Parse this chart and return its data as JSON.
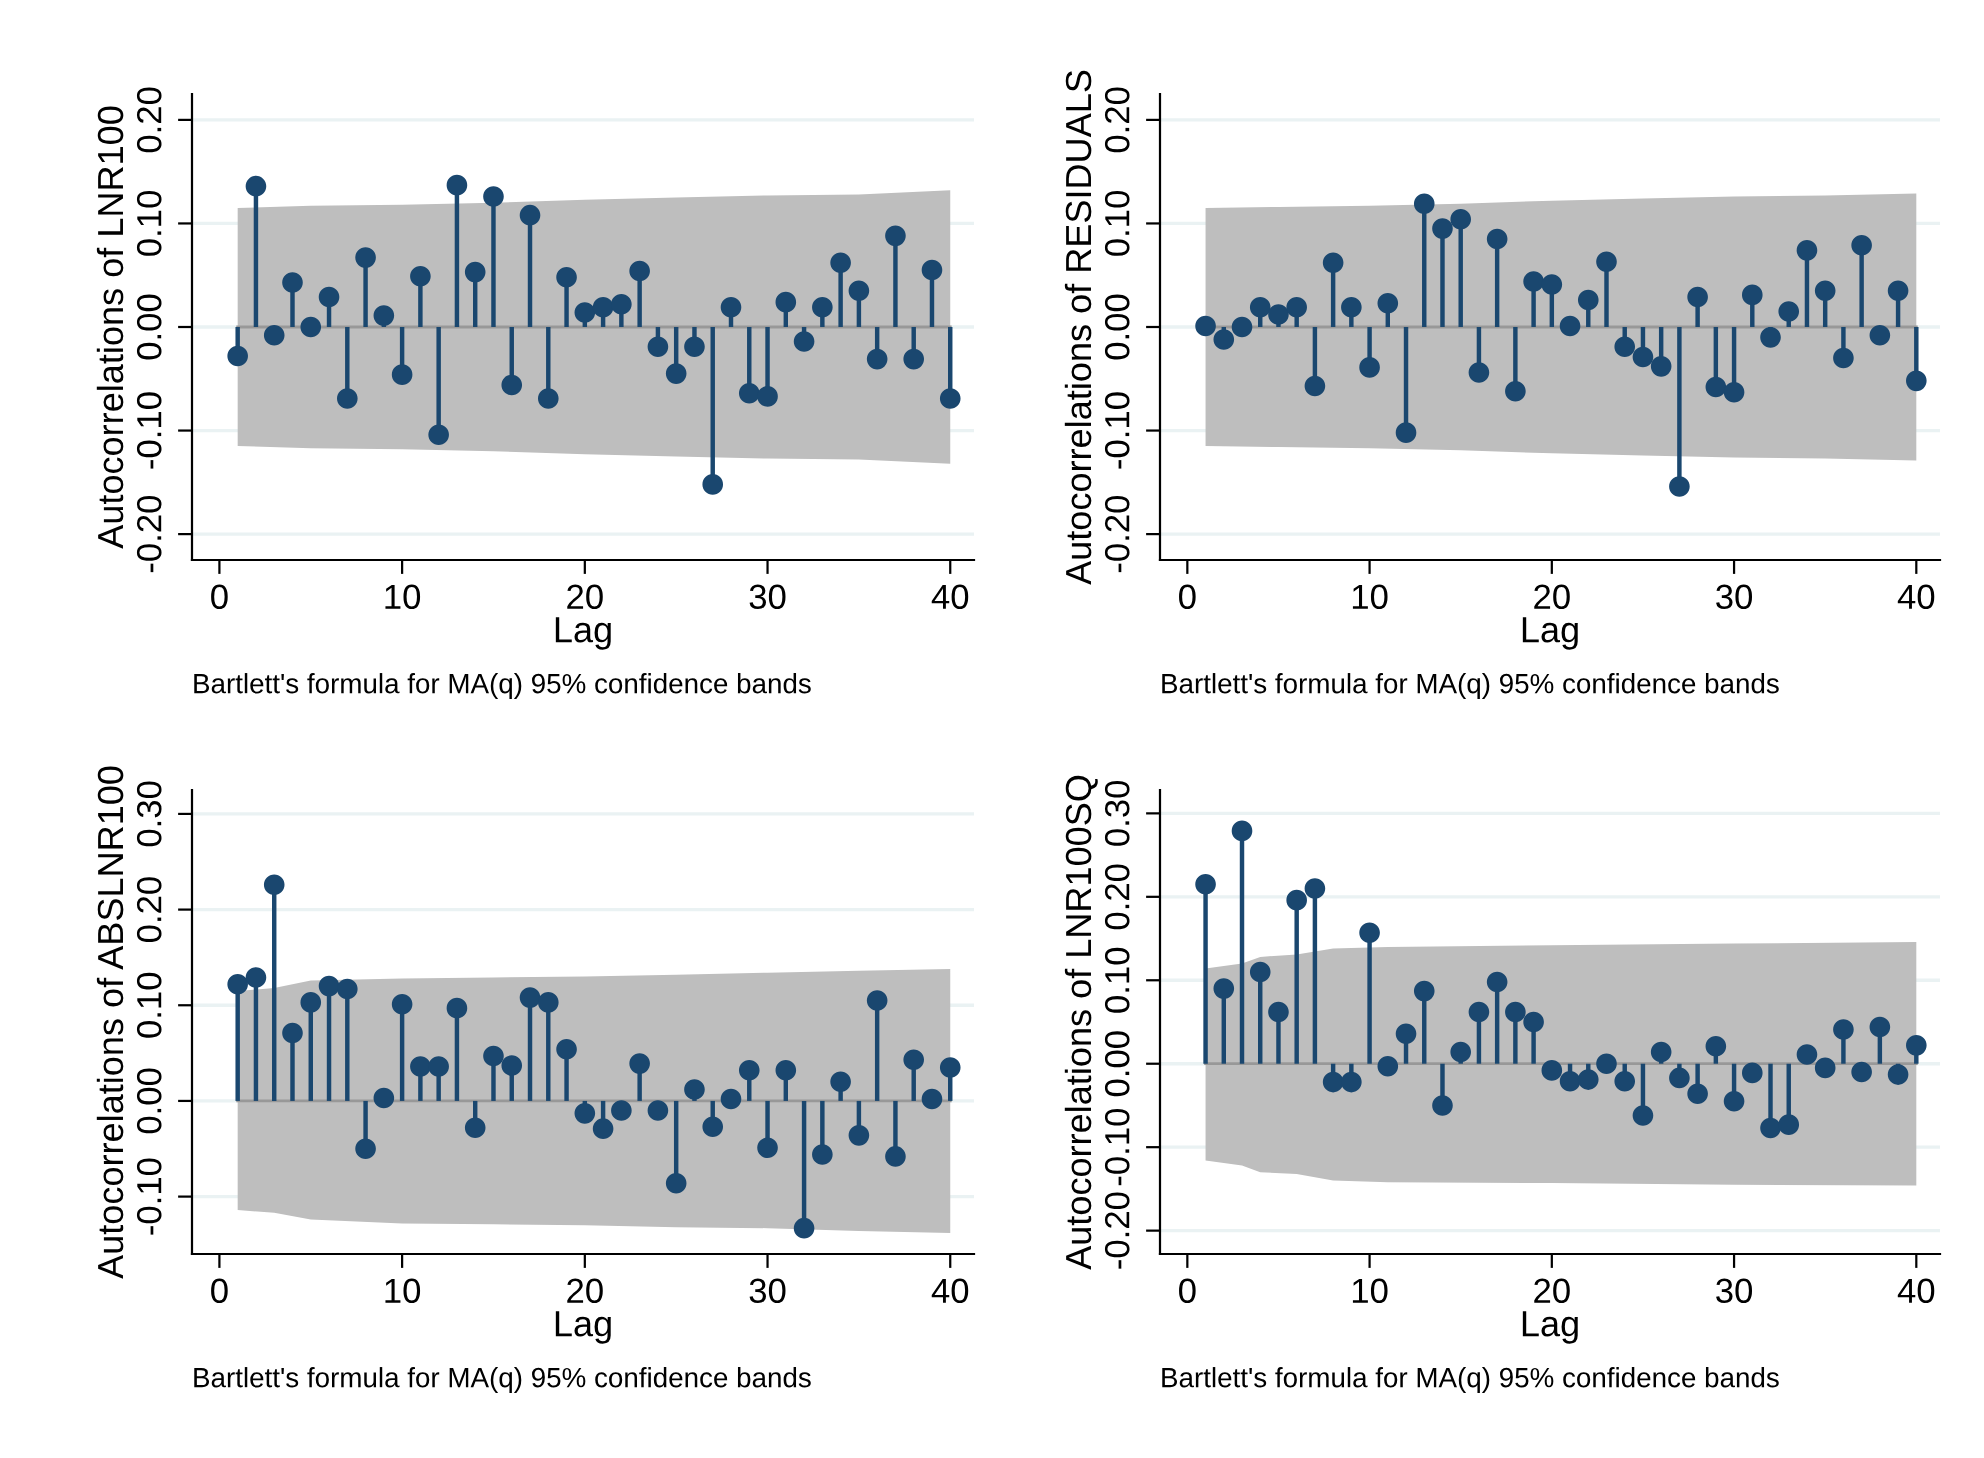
{
  "chart_data": [
    {
      "type": "lollipop",
      "ylabel": "Autocorrelations of LNR100",
      "xlabel": "Lag",
      "annotations": [
        "Bartlett's formula for MA(q) 95% confidence bands"
      ],
      "xlim": [
        -1.5,
        41.3
      ],
      "xticks": [
        0,
        10,
        20,
        30,
        40
      ],
      "ylim": [
        -0.225,
        0.225
      ],
      "yticks": [
        {
          "value": -0.2,
          "label": "-0.20"
        },
        {
          "value": -0.1,
          "label": "-0.10"
        },
        {
          "value": 0,
          "label": "0.00"
        },
        {
          "value": 0.1,
          "label": "0.10"
        },
        {
          "value": 0.2,
          "label": "0.20"
        }
      ],
      "grid": "y",
      "marker": "circle",
      "series": [
        {
          "type": "line",
          "color": "#989898",
          "marker": "none",
          "x": [
            1,
            5,
            10,
            15,
            20,
            25,
            30,
            35,
            40
          ],
          "values": [
            0,
            0,
            0,
            0,
            0,
            0,
            0,
            0,
            0
          ],
          "lower": [
            -0.115,
            -0.117,
            -0.118,
            -0.12,
            -0.123,
            -0.125,
            -0.127,
            -0.128,
            -0.132
          ],
          "upper": [
            0.115,
            0.117,
            0.118,
            0.12,
            0.123,
            0.125,
            0.127,
            0.128,
            0.132
          ]
        },
        {
          "color": "#1a476f",
          "x": [
            1,
            2,
            3,
            4,
            5,
            6,
            7,
            8,
            9,
            10,
            11,
            12,
            13,
            14,
            15,
            16,
            17,
            18,
            19,
            20,
            21,
            22,
            23,
            24,
            25,
            26,
            27,
            28,
            29,
            30,
            31,
            32,
            33,
            34,
            35,
            36,
            37,
            38,
            39,
            40
          ],
          "values": [
            -0.028,
            0.136,
            -0.008,
            0.043,
            0.0,
            0.029,
            -0.069,
            0.067,
            0.011,
            -0.046,
            0.049,
            -0.104,
            0.137,
            0.053,
            0.126,
            -0.056,
            0.108,
            -0.069,
            0.048,
            0.014,
            0.019,
            0.022,
            0.054,
            -0.019,
            -0.045,
            -0.019,
            -0.152,
            0.019,
            -0.064,
            -0.067,
            0.024,
            -0.014,
            0.019,
            0.062,
            0.035,
            -0.031,
            0.088,
            -0.031,
            0.055,
            -0.069
          ]
        }
      ]
    },
    {
      "type": "lollipop",
      "ylabel": "Autocorrelations of RESIDUALS",
      "xlabel": "Lag",
      "annotations": [
        "Bartlett's formula for MA(q) 95% confidence bands"
      ],
      "xlim": [
        -1.5,
        41.3
      ],
      "xticks": [
        0,
        10,
        20,
        30,
        40
      ],
      "ylim": [
        -0.225,
        0.225
      ],
      "yticks": [
        {
          "value": -0.2,
          "label": "-0.20"
        },
        {
          "value": -0.1,
          "label": "-0.10"
        },
        {
          "value": 0,
          "label": "0.00"
        },
        {
          "value": 0.1,
          "label": "0.10"
        },
        {
          "value": 0.2,
          "label": "0.20"
        }
      ],
      "grid": "y",
      "marker": "circle",
      "series": [
        {
          "type": "line",
          "color": "#989898",
          "marker": "none",
          "x": [
            1,
            5,
            10,
            15,
            20,
            25,
            30,
            35,
            40
          ],
          "values": [
            0,
            0,
            0,
            0,
            0,
            0,
            0,
            0,
            0
          ],
          "lower": [
            -0.115,
            -0.116,
            -0.117,
            -0.119,
            -0.122,
            -0.124,
            -0.126,
            -0.127,
            -0.129
          ],
          "upper": [
            0.115,
            0.116,
            0.117,
            0.119,
            0.122,
            0.124,
            0.126,
            0.127,
            0.129
          ]
        },
        {
          "color": "#1a476f",
          "x": [
            1,
            2,
            3,
            4,
            5,
            6,
            7,
            8,
            9,
            10,
            11,
            12,
            13,
            14,
            15,
            16,
            17,
            18,
            19,
            20,
            21,
            22,
            23,
            24,
            25,
            26,
            27,
            28,
            29,
            30,
            31,
            32,
            33,
            34,
            35,
            36,
            37,
            38,
            39,
            40
          ],
          "values": [
            0.001,
            -0.012,
            0.0,
            0.019,
            0.012,
            0.019,
            -0.057,
            0.062,
            0.019,
            -0.039,
            0.023,
            -0.102,
            0.119,
            0.095,
            0.104,
            -0.044,
            0.085,
            -0.062,
            0.044,
            0.041,
            0.001,
            0.026,
            0.063,
            -0.019,
            -0.029,
            -0.038,
            -0.154,
            0.029,
            -0.058,
            -0.063,
            0.031,
            -0.01,
            0.015,
            0.074,
            0.035,
            -0.03,
            0.079,
            -0.008,
            0.035,
            -0.052
          ]
        }
      ]
    },
    {
      "type": "lollipop",
      "ylabel": "Autocorrelations of ABSLNR100",
      "xlabel": "Lag",
      "annotations": [
        "Bartlett's formula for MA(q) 95% confidence bands"
      ],
      "xlim": [
        -1.5,
        41.3
      ],
      "xticks": [
        0,
        10,
        20,
        30,
        40
      ],
      "ylim": [
        -0.16,
        0.325
      ],
      "yticks": [
        {
          "value": -0.1,
          "label": "-0.10"
        },
        {
          "value": 0,
          "label": "0.00"
        },
        {
          "value": 0.1,
          "label": "0.10"
        },
        {
          "value": 0.2,
          "label": "0.20"
        },
        {
          "value": 0.3,
          "label": "0.30"
        }
      ],
      "grid": "y",
      "marker": "circle",
      "series": [
        {
          "type": "line",
          "color": "#989898",
          "marker": "none",
          "x": [
            1,
            3,
            5,
            10,
            15,
            20,
            25,
            30,
            35,
            40
          ],
          "values": [
            0,
            0,
            0,
            0,
            0,
            0,
            0,
            0,
            0,
            0
          ],
          "lower": [
            -0.114,
            -0.117,
            -0.124,
            -0.128,
            -0.129,
            -0.13,
            -0.132,
            -0.133,
            -0.136,
            -0.138
          ],
          "upper": [
            0.115,
            0.118,
            0.126,
            0.128,
            0.129,
            0.13,
            0.132,
            0.134,
            0.136,
            0.138
          ]
        },
        {
          "color": "#1a476f",
          "x": [
            1,
            2,
            3,
            4,
            5,
            6,
            7,
            8,
            9,
            10,
            11,
            12,
            13,
            14,
            15,
            16,
            17,
            18,
            19,
            20,
            21,
            22,
            23,
            24,
            25,
            26,
            27,
            28,
            29,
            30,
            31,
            32,
            33,
            34,
            35,
            36,
            37,
            38,
            39,
            40
          ],
          "values": [
            0.122,
            0.129,
            0.226,
            0.071,
            0.103,
            0.12,
            0.117,
            -0.05,
            0.003,
            0.101,
            0.036,
            0.036,
            0.097,
            -0.028,
            0.047,
            0.037,
            0.108,
            0.103,
            0.054,
            -0.013,
            -0.029,
            -0.01,
            0.039,
            -0.01,
            -0.086,
            0.012,
            -0.027,
            0.002,
            0.032,
            -0.049,
            0.032,
            -0.133,
            -0.056,
            0.02,
            -0.036,
            0.105,
            -0.058,
            0.043,
            0.002,
            0.035
          ]
        }
      ]
    },
    {
      "type": "lollipop",
      "ylabel": "Autocorrelations of LNR100SQ",
      "xlabel": "Lag",
      "annotations": [
        "Bartlett's formula for MA(q) 95% confidence bands"
      ],
      "xlim": [
        -1.5,
        41.3
      ],
      "xticks": [
        0,
        10,
        20,
        30,
        40
      ],
      "ylim": [
        -0.228,
        0.328
      ],
      "yticks": [
        {
          "value": -0.2,
          "label": "-0.20"
        },
        {
          "value": -0.1,
          "label": "-0.10"
        },
        {
          "value": 0,
          "label": "0.00"
        },
        {
          "value": 0.1,
          "label": "0.10"
        },
        {
          "value": 0.2,
          "label": "0.20"
        },
        {
          "value": 0.3,
          "label": "0.30"
        }
      ],
      "grid": "y",
      "marker": "circle",
      "series": [
        {
          "type": "line",
          "color": "#989898",
          "marker": "none",
          "x": [
            1,
            3,
            4,
            6,
            8,
            11,
            20,
            30,
            40
          ],
          "values": [
            0,
            0,
            0,
            0,
            0,
            0,
            0,
            0,
            0
          ],
          "lower": [
            -0.116,
            -0.122,
            -0.13,
            -0.132,
            -0.14,
            -0.142,
            -0.143,
            -0.145,
            -0.146
          ],
          "upper": [
            0.114,
            0.12,
            0.128,
            0.131,
            0.138,
            0.14,
            0.142,
            0.144,
            0.146
          ]
        },
        {
          "color": "#1a476f",
          "x": [
            1,
            2,
            3,
            4,
            5,
            6,
            7,
            8,
            9,
            10,
            11,
            12,
            13,
            14,
            15,
            16,
            17,
            18,
            19,
            20,
            21,
            22,
            23,
            24,
            25,
            26,
            27,
            28,
            29,
            30,
            31,
            32,
            33,
            34,
            35,
            36,
            37,
            38,
            39,
            40
          ],
          "values": [
            0.215,
            0.09,
            0.279,
            0.11,
            0.062,
            0.196,
            0.21,
            -0.022,
            -0.022,
            0.157,
            -0.003,
            0.036,
            0.087,
            -0.05,
            0.014,
            0.062,
            0.098,
            0.062,
            0.05,
            -0.008,
            -0.021,
            -0.019,
            0.0,
            -0.021,
            -0.062,
            0.014,
            -0.017,
            -0.036,
            0.021,
            -0.045,
            -0.011,
            -0.077,
            -0.073,
            0.011,
            -0.005,
            0.041,
            -0.01,
            0.044,
            -0.013,
            0.022
          ]
        }
      ]
    }
  ]
}
